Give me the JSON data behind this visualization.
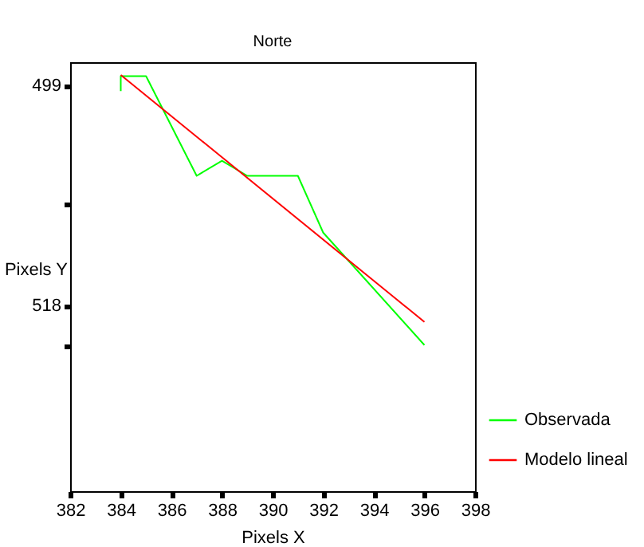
{
  "chart_data": {
    "type": "line",
    "title": "Norte",
    "xlabel": "Pixels X",
    "ylabel": "Pixels Y",
    "xlim": [
      382,
      398
    ],
    "xticks": [
      382,
      384,
      386,
      388,
      390,
      392,
      394,
      396,
      398
    ],
    "ylim": [
      534,
      497
    ],
    "yticks": [
      499,
      {
        "value": 509.2,
        "label": null
      },
      518,
      {
        "value": 521.5,
        "label": null
      }
    ],
    "series": [
      {
        "name": "Observada",
        "color": "#00ff00",
        "x": [
          384,
          384,
          385,
          387,
          388,
          389,
          391,
          392,
          396
        ],
        "values": [
          499.5,
          498.2,
          498.2,
          506.8,
          505.5,
          506.8,
          506.8,
          511.7,
          521.4
        ]
      },
      {
        "name": "Modelo lineal",
        "color": "#ff0000",
        "x": [
          384,
          396
        ],
        "values": [
          498.1,
          519.4
        ]
      }
    ],
    "grid": false,
    "legend": "bottom right",
    "marker": "none",
    "line_style": "solid"
  }
}
